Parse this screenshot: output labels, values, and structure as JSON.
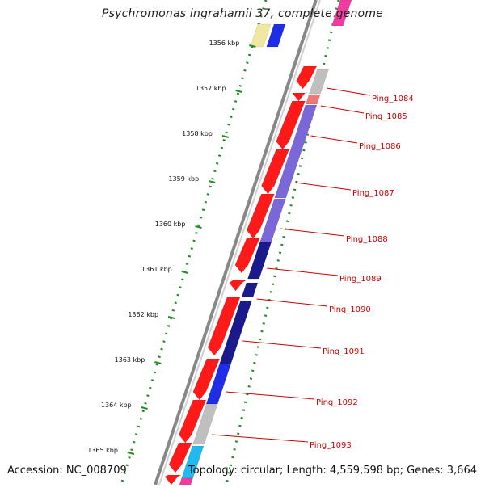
{
  "title": "Psychromonas ingrahamii 37, complete genome",
  "footer": {
    "accession": "Accession: NC_008709",
    "summary": "Topology: circular; Length: 4,559,598 bp; Genes: 3,664"
  },
  "ruler": {
    "ticks": [
      {
        "label": "1356 kbp",
        "t": 0.12
      },
      {
        "label": "1357 kbp",
        "t": 0.215
      },
      {
        "label": "1358 kbp",
        "t": 0.31
      },
      {
        "label": "1359 kbp",
        "t": 0.405
      },
      {
        "label": "1360 kbp",
        "t": 0.5
      },
      {
        "label": "1361 kbp",
        "t": 0.595
      },
      {
        "label": "1362 kbp",
        "t": 0.69
      },
      {
        "label": "1363 kbp",
        "t": 0.785
      },
      {
        "label": "1364 kbp",
        "t": 0.88
      },
      {
        "label": "1365 kbp",
        "t": 0.975
      }
    ]
  },
  "genes": [
    {
      "label": "Ping_1084",
      "t": 0.205
    },
    {
      "label": "Ping_1085",
      "t": 0.24
    },
    {
      "label": "Ping_1086",
      "t": 0.3
    },
    {
      "label": "Ping_1087",
      "t": 0.4
    },
    {
      "label": "Ping_1088",
      "t": 0.49
    },
    {
      "label": "Ping_1089",
      "t": 0.575
    },
    {
      "label": "Ping_1090",
      "t": 0.635
    },
    {
      "label": "Ping_1091",
      "t": 0.725
    },
    {
      "label": "Ping_1092",
      "t": 0.83
    },
    {
      "label": "Ping_1093",
      "t": 0.92
    }
  ],
  "colors": {
    "forward_cds": "#ff1a1a",
    "backbone": "#888888",
    "tick": "#228b22",
    "label": "#cc0000",
    "purple": "#7a67d8",
    "navy": "#1a1a8c",
    "blue": "#1f2de6",
    "grey": "#bfbfbf",
    "cyan": "#22b8f0",
    "pink": "#f03ca0",
    "yellow": "#f0e8a0"
  }
}
